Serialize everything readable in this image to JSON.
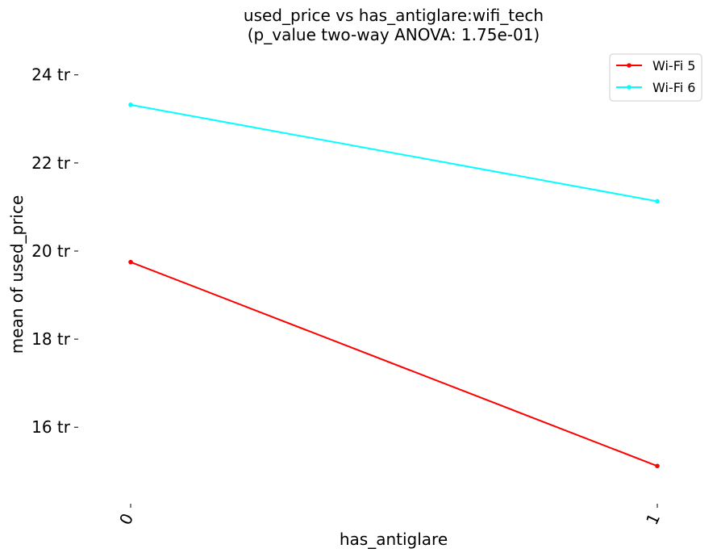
{
  "chart_data": {
    "type": "line",
    "title": "used_price vs has_antiglare:wifi_tech",
    "subtitle": "(p_value two-way ANOVA: 1.75e-01)",
    "xlabel": "has_antiglare",
    "ylabel": "mean of used_price",
    "categories": [
      "0",
      "1"
    ],
    "y_tick_values": [
      16,
      18,
      20,
      22,
      24
    ],
    "y_tick_labels": [
      "16 tr",
      "18 tr",
      "20 tr",
      "22 tr",
      "24 tr"
    ],
    "ylim": [
      14.3,
      24.6
    ],
    "legend_position": "top-right",
    "grid": false,
    "series": [
      {
        "name": "Wi-Fi 5",
        "color": "#ff0000",
        "values": [
          19.75,
          15.12
        ]
      },
      {
        "name": "Wi-Fi 6",
        "color": "#00ffff",
        "values": [
          23.32,
          21.13
        ]
      }
    ]
  }
}
